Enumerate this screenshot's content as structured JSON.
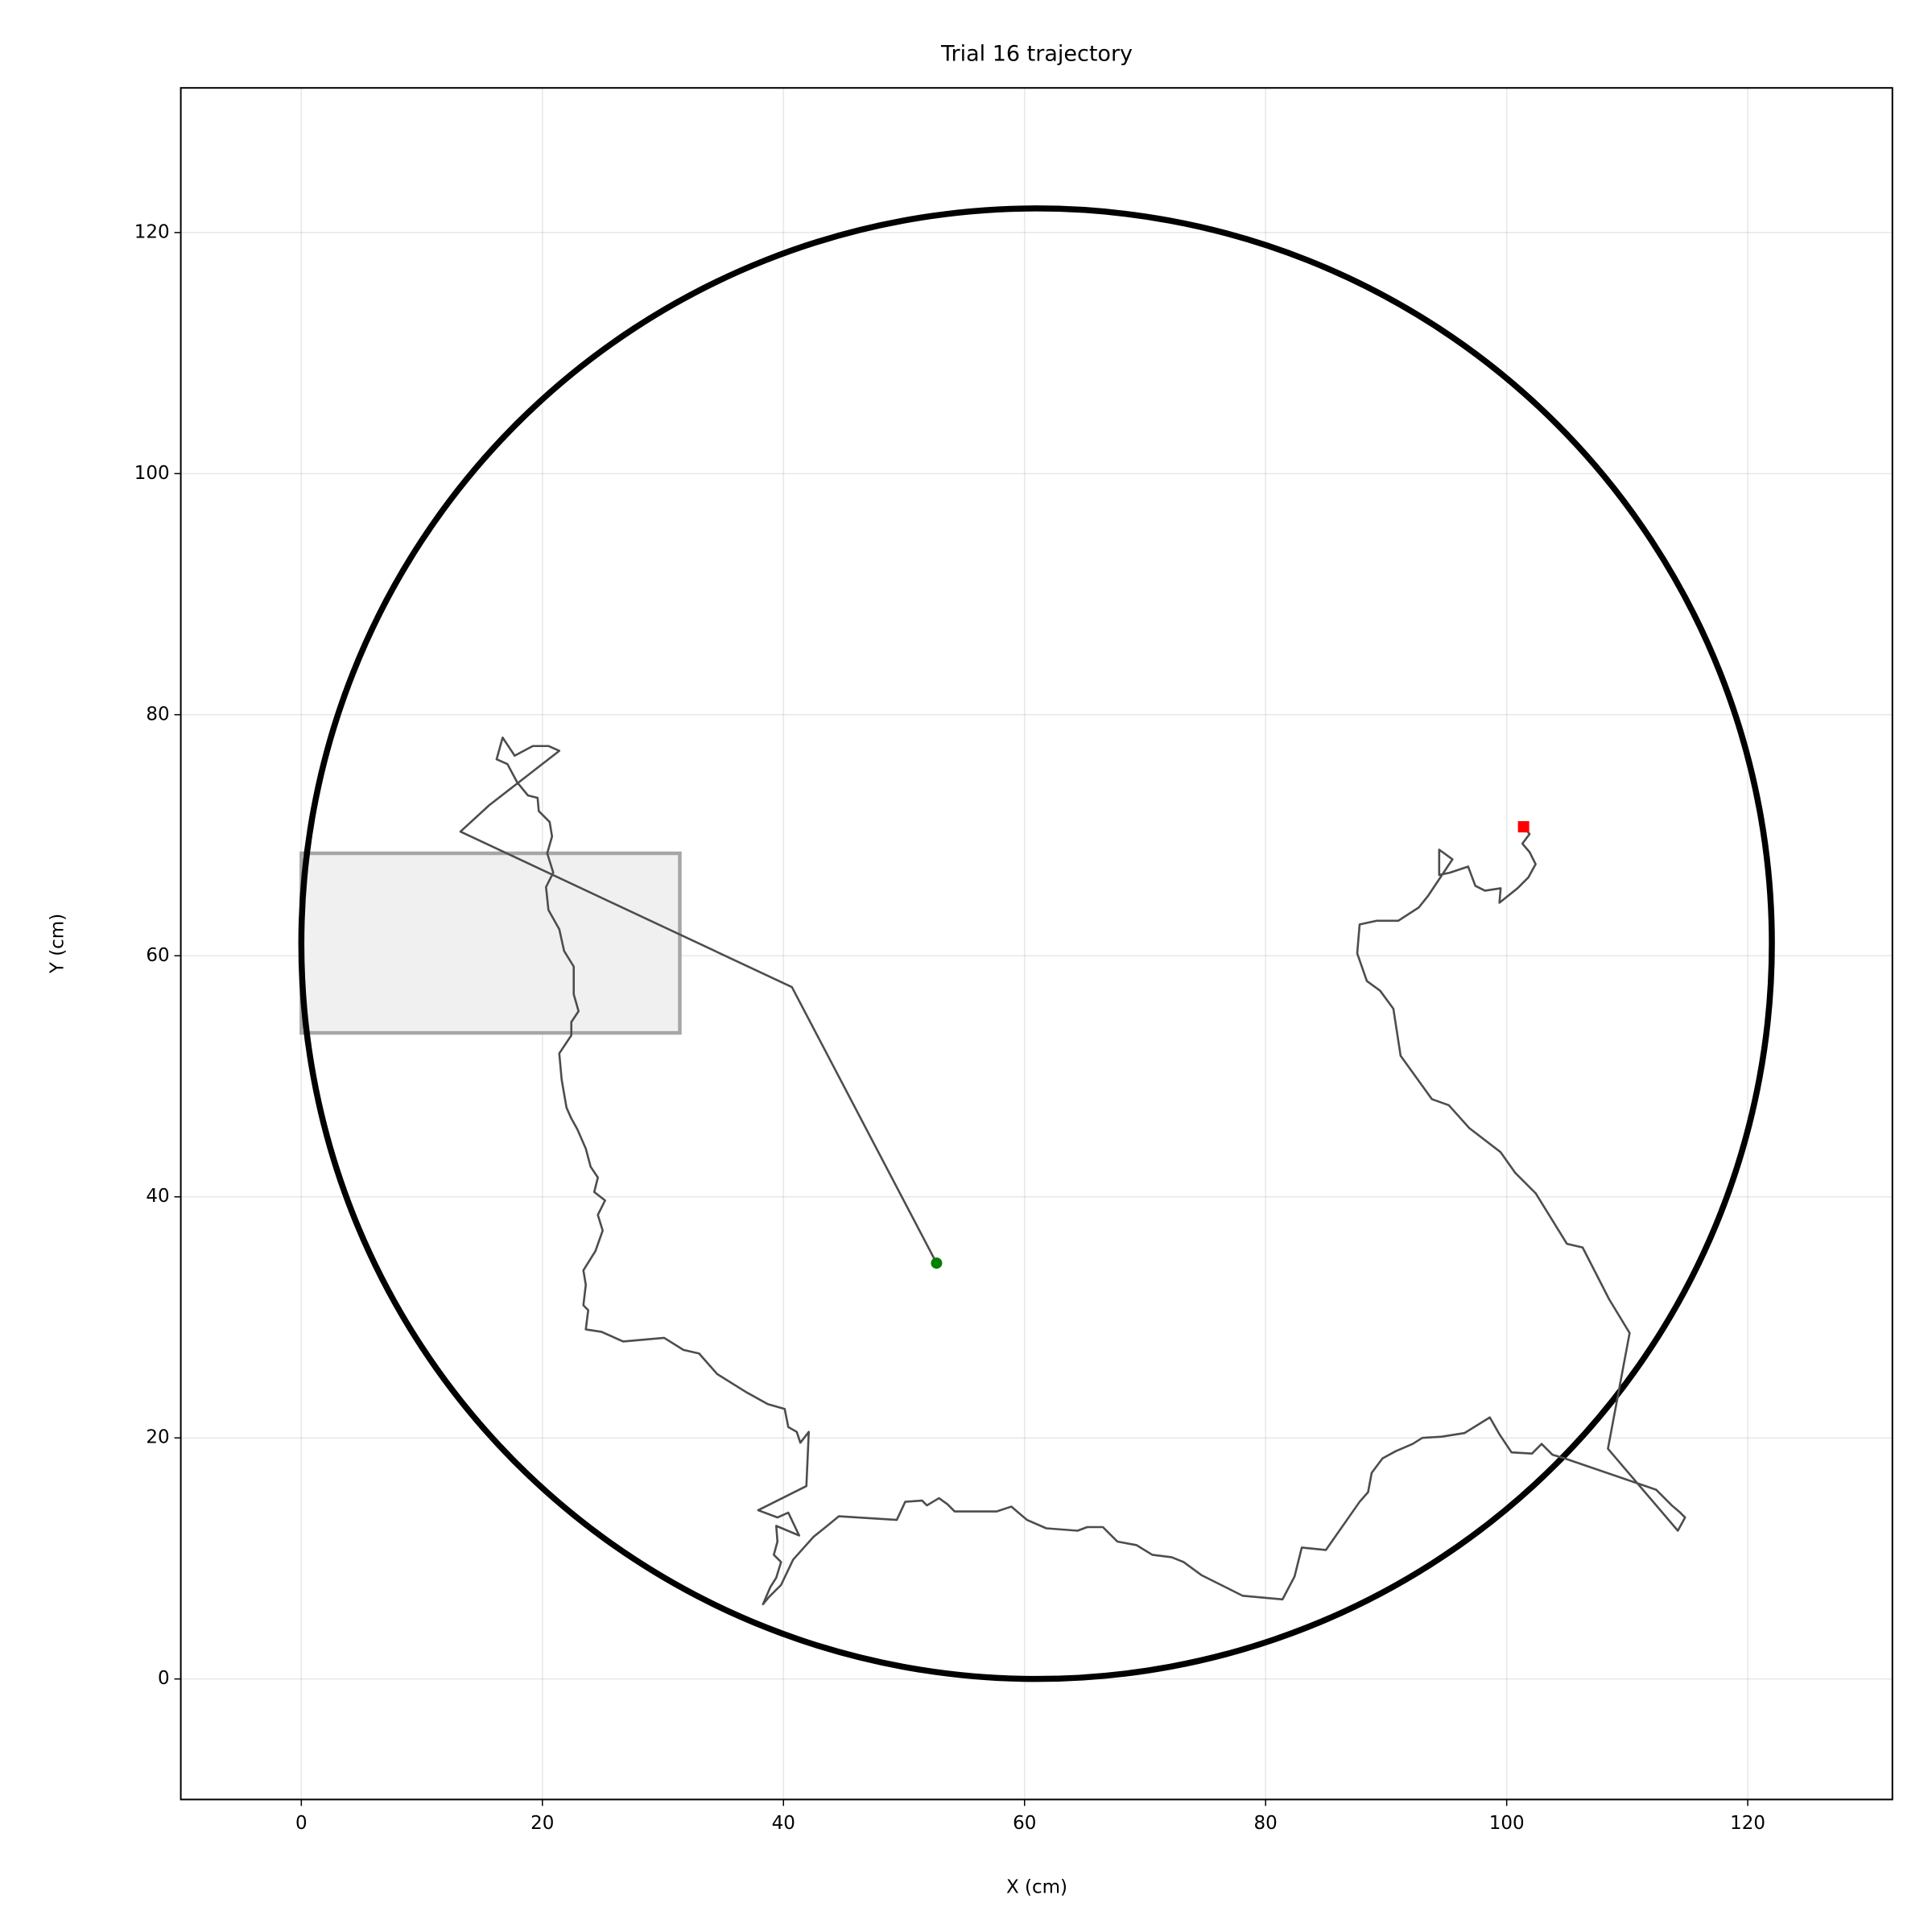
{
  "chart_data": {
    "type": "line",
    "title": "Trial 16 trajectory",
    "xlabel": "X (cm)",
    "ylabel": "Y (cm)",
    "xlim": [
      -10,
      132
    ],
    "ylim": [
      -10,
      132
    ],
    "xticks": [
      0,
      20,
      40,
      60,
      80,
      100,
      120
    ],
    "yticks": [
      0,
      20,
      40,
      60,
      80,
      100,
      120
    ],
    "grid": true,
    "arena": {
      "center_x": 61,
      "center_y": 61,
      "radius": 61,
      "color": "#000000"
    },
    "zone": {
      "x0": 0,
      "x1": 31.4,
      "y0": 53.6,
      "y1": 68.5,
      "color": "#f0f0f0",
      "edge": "#a6a6a6"
    },
    "start": {
      "x": 52.7,
      "y": 34.5,
      "color": "#008000"
    },
    "end": {
      "x": 101.4,
      "y": 70.7,
      "color": "#ff0000"
    },
    "series": [
      {
        "color": "#4d4d4d",
        "x": [
          52.7,
          40.7,
          13.2,
          15.6,
          21.4,
          20.5,
          19.2,
          17.7,
          16.7,
          16.2,
          17.1,
          17.9,
          18.8,
          19.6,
          19.7,
          20.6,
          20.8,
          20.4,
          20.9,
          20.3,
          20.5,
          21.4,
          21.8,
          22.6,
          22.6,
          23.0,
          22.4,
          22.4,
          21.4,
          21.6,
          22.0,
          22.4,
          22.9,
          23.6,
          24.0,
          24.6,
          24.3,
          25.2,
          24.6,
          25.0,
          24.4,
          23.4,
          23.6,
          23.4,
          23.8,
          23.6,
          24.9,
          26.7,
          30.1,
          31.7,
          33.0,
          34.5,
          36.9,
          38.7,
          40.1,
          40.4,
          41.1,
          41.4,
          42.1,
          41.9,
          37.9,
          39.5,
          40.4,
          41.3,
          39.4,
          39.5,
          39.2,
          39.8,
          39.4,
          38.9,
          38.3,
          38.8,
          39.8,
          40.8,
          42.5,
          43.5,
          44.6,
          49.4,
          50.1,
          51.5,
          51.9,
          52.9,
          53.6,
          54.2,
          57.7,
          58.9,
          60.2,
          61.8,
          64.4,
          65.2,
          66.5,
          67.7,
          69.3,
          70.6,
          72.2,
          73.2,
          74.7,
          78.1,
          81.4,
          82.4,
          83.0,
          85.0,
          87.8,
          88.5,
          88.8,
          89.7,
          90.8,
          92.2,
          93.0,
          94.6,
          96.5,
          98.6,
          99.4,
          100.4,
          102.1,
          102.9,
          103.8,
          104.8,
          112.4,
          113.7,
          114.4,
          114.8,
          114.2,
          108.4,
          110.2,
          108.5,
          106.3,
          105.0,
          102.4,
          100.7,
          99.5,
          96.9,
          95.2,
          93.8,
          92.5,
          91.2,
          90.6,
          89.5,
          88.4,
          87.6,
          87.8,
          89.2,
          91.0,
          92.7,
          93.5,
          95.5,
          94.4,
          94.4,
          95.3,
          96.8,
          97.4,
          98.2,
          99.5,
          99.4,
          100.9,
          101.8,
          102.4,
          101.9,
          101.3,
          101.9,
          101.4
        ],
        "values": [
          34.5,
          57.4,
          70.3,
          72.5,
          77.0,
          77.4,
          77.4,
          76.6,
          78.1,
          76.3,
          75.9,
          74.4,
          73.3,
          73.1,
          72.0,
          71.1,
          69.9,
          68.5,
          66.9,
          65.7,
          63.8,
          62.2,
          60.4,
          59.1,
          56.8,
          55.4,
          54.5,
          53.4,
          51.9,
          49.7,
          47.4,
          46.5,
          45.6,
          44.0,
          42.5,
          41.6,
          40.4,
          39.7,
          38.5,
          37.2,
          35.5,
          33.9,
          32.7,
          31.0,
          30.6,
          29.0,
          28.8,
          28.0,
          28.3,
          27.3,
          27.0,
          25.3,
          23.8,
          22.8,
          22.4,
          20.9,
          20.5,
          19.6,
          20.5,
          16.0,
          14.0,
          13.4,
          13.8,
          11.9,
          12.7,
          11.4,
          10.3,
          9.7,
          8.4,
          7.6,
          6.2,
          6.8,
          7.8,
          9.9,
          11.8,
          12.6,
          13.5,
          13.2,
          14.7,
          14.8,
          14.4,
          15.0,
          14.5,
          13.9,
          13.9,
          14.3,
          13.2,
          12.5,
          12.3,
          12.6,
          12.6,
          11.4,
          11.1,
          10.3,
          10.1,
          9.7,
          8.6,
          6.9,
          6.6,
          8.5,
          10.9,
          10.7,
          14.7,
          15.5,
          17.1,
          18.3,
          18.9,
          19.5,
          20.0,
          20.1,
          20.4,
          21.7,
          20.3,
          18.8,
          18.7,
          19.5,
          18.6,
          18.3,
          15.7,
          14.4,
          13.8,
          13.4,
          12.3,
          19.1,
          28.7,
          31.5,
          35.8,
          36.1,
          40.3,
          42.0,
          43.7,
          45.7,
          47.6,
          48.1,
          49.9,
          51.7,
          55.6,
          57.1,
          57.9,
          60.2,
          62.6,
          62.9,
          62.9,
          64.0,
          65.0,
          68.0,
          68.8,
          66.7,
          66.9,
          67.4,
          65.8,
          65.4,
          65.6,
          64.4,
          65.6,
          66.5,
          67.6,
          68.6,
          69.3,
          70.1,
          70.7
        ]
      }
    ]
  }
}
